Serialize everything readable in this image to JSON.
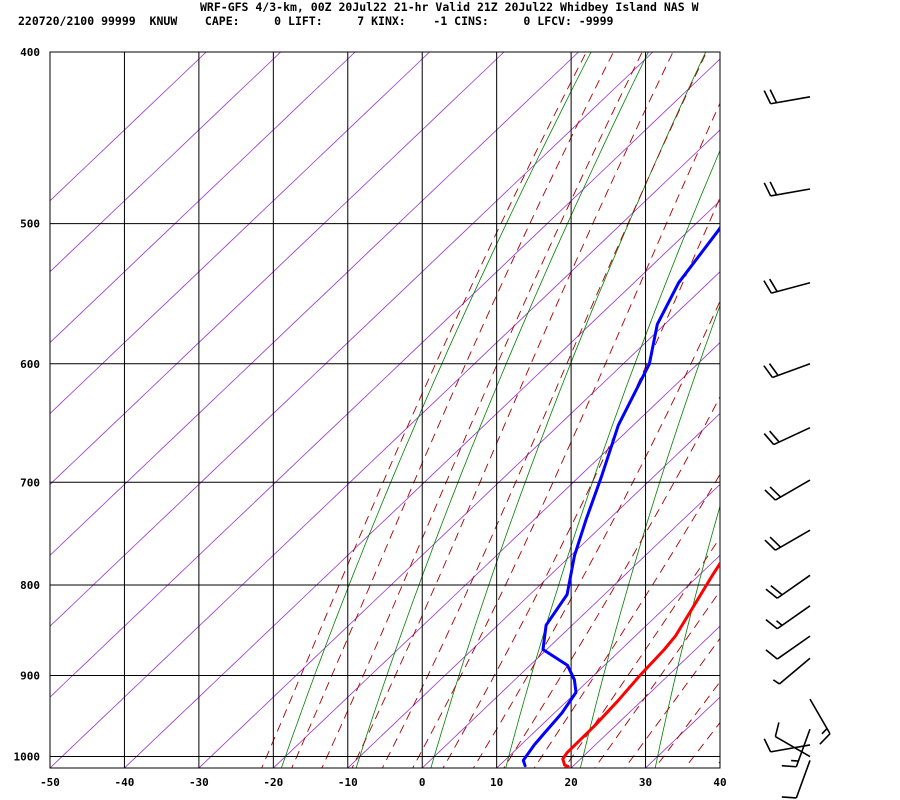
{
  "header": {
    "line1": "WRF-GFS 4/3-km, 00Z 20Jul22 21-hr Valid 21Z 20Jul22 Whidbey Island NAS W",
    "line2": "220720/2100 99999  KNUW    CAPE:     0 LIFT:     7 KINX:    -1 CINS:     0 LFCV: -9999"
  },
  "colors": {
    "temperature": "#ff0000",
    "dewpoint": "#0000ff",
    "dry_adiabat": "#008000",
    "moist_adiabat": "#aa0000",
    "isotherm": "#9933cc",
    "grid": "#000000"
  },
  "chart_data": {
    "type": "line",
    "x_axis": {
      "range": [
        -50,
        40
      ],
      "ticks": [
        -50,
        -40,
        -30,
        -20,
        -10,
        0,
        10,
        20,
        30,
        40
      ]
    },
    "y_axis": {
      "range": [
        400,
        1015
      ],
      "ticks": [
        400,
        500,
        600,
        700,
        800,
        900,
        1000
      ],
      "scale": "log",
      "inverted": true
    },
    "grid": true,
    "series": [
      {
        "key": "temperature",
        "color": "#ff0000",
        "points": [
          [
            -20.5,
            425
          ],
          [
            -17,
            448
          ],
          [
            -13,
            478
          ],
          [
            -10,
            500
          ],
          [
            -6.5,
            532
          ],
          [
            -3.8,
            560
          ],
          [
            -1,
            590
          ],
          [
            0.5,
            610
          ],
          [
            3.5,
            650
          ],
          [
            6.5,
            690
          ],
          [
            9.2,
            733
          ],
          [
            10.2,
            760
          ],
          [
            11.8,
            790
          ],
          [
            13.5,
            820
          ],
          [
            15.4,
            855
          ],
          [
            15.8,
            870
          ],
          [
            16.2,
            900
          ],
          [
            16.8,
            930
          ],
          [
            17.2,
            960
          ],
          [
            17.3,
            995
          ],
          [
            17.6,
            1003
          ],
          [
            18.7,
            1011
          ],
          [
            19.4,
            1013
          ]
        ]
      },
      {
        "key": "dewpoint",
        "color": "#0000ff",
        "points": [
          [
            -40,
            425
          ],
          [
            -38.5,
            465
          ],
          [
            -37.5,
            485
          ],
          [
            -36,
            505
          ],
          [
            -34,
            540
          ],
          [
            -31,
            570
          ],
          [
            -26.5,
            600
          ],
          [
            -22,
            650
          ],
          [
            -17,
            695
          ],
          [
            -13,
            735
          ],
          [
            -9.5,
            770
          ],
          [
            -5,
            810
          ],
          [
            -3.5,
            843
          ],
          [
            -0.5,
            870
          ],
          [
            5,
            888
          ],
          [
            8,
            905
          ],
          [
            10,
            920
          ],
          [
            11,
            945
          ],
          [
            11.5,
            970
          ],
          [
            11.8,
            985
          ],
          [
            12.5,
            1005
          ],
          [
            13.5,
            1012
          ]
        ]
      }
    ],
    "wind_barbs": [
      {
        "p": 424,
        "dir": 260,
        "spd": 20
      },
      {
        "p": 478,
        "dir": 260,
        "spd": 20
      },
      {
        "p": 540,
        "dir": 255,
        "spd": 20
      },
      {
        "p": 600,
        "dir": 250,
        "spd": 20
      },
      {
        "p": 652,
        "dir": 245,
        "spd": 20
      },
      {
        "p": 698,
        "dir": 240,
        "spd": 20
      },
      {
        "p": 745,
        "dir": 240,
        "spd": 20
      },
      {
        "p": 790,
        "dir": 235,
        "spd": 20
      },
      {
        "p": 822,
        "dir": 235,
        "spd": 15
      },
      {
        "p": 855,
        "dir": 235,
        "spd": 10
      },
      {
        "p": 880,
        "dir": 230,
        "spd": 5
      },
      {
        "p": 928,
        "dir": 150,
        "spd": 15
      },
      {
        "p": 965,
        "dir": 200,
        "spd": 15
      },
      {
        "p": 985,
        "dir": 260,
        "spd": 10
      },
      {
        "p": 1000,
        "dir": 300,
        "spd": 10
      },
      {
        "p": 1005,
        "dir": 200,
        "spd": 10
      }
    ]
  }
}
